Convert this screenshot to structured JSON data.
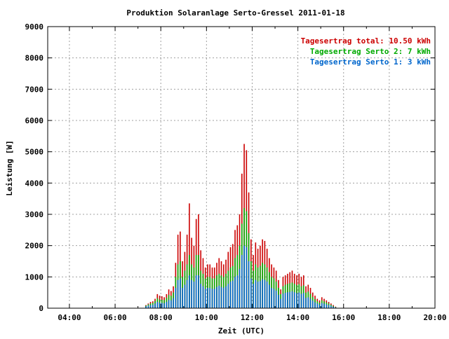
{
  "chart_data": {
    "type": "bar",
    "title": "Produktion Solaranlage Serto-Gressel 2011-01-18",
    "xlabel": "Zeit (UTC)",
    "ylabel": "Leistung [W]",
    "xlim": [
      3.05,
      20.0
    ],
    "ylim": [
      0,
      9000
    ],
    "grid": true,
    "legend_position": "top-right",
    "x_tick_values": [
      4,
      6,
      8,
      10,
      12,
      14,
      16,
      18,
      20
    ],
    "x_tick_labels": [
      "04:00",
      "06:00",
      "08:00",
      "10:00",
      "12:00",
      "14:00",
      "16:00",
      "18:00",
      "20:00"
    ],
    "y_ticks": [
      0,
      1000,
      2000,
      3000,
      4000,
      5000,
      6000,
      7000,
      8000,
      9000
    ],
    "x_unit": "hours UTC",
    "legend": [
      {
        "label": "Tagesertrag total: 10.50 kWh",
        "color": "#cc0000"
      },
      {
        "label": "Tagesertrag Serto 2: 7 kWh",
        "color": "#00aa00"
      },
      {
        "label": "Tagesertrag Serto 1: 3 kWh",
        "color": "#0066cc"
      }
    ],
    "series_colors": {
      "total": "#cc0000",
      "serto2": "#00aa00",
      "serto1": "#0066cc"
    },
    "x": [
      7.35,
      7.45,
      7.55,
      7.65,
      7.75,
      7.85,
      7.95,
      8.05,
      8.15,
      8.25,
      8.35,
      8.45,
      8.55,
      8.65,
      8.75,
      8.85,
      8.95,
      9.05,
      9.15,
      9.25,
      9.35,
      9.45,
      9.55,
      9.65,
      9.75,
      9.85,
      9.95,
      10.05,
      10.15,
      10.25,
      10.35,
      10.45,
      10.55,
      10.65,
      10.75,
      10.85,
      10.95,
      11.05,
      11.15,
      11.25,
      11.35,
      11.45,
      11.55,
      11.65,
      11.75,
      11.85,
      11.95,
      12.05,
      12.15,
      12.25,
      12.35,
      12.45,
      12.55,
      12.65,
      12.75,
      12.85,
      12.95,
      13.05,
      13.15,
      13.25,
      13.35,
      13.45,
      13.55,
      13.65,
      13.75,
      13.85,
      13.95,
      14.05,
      14.15,
      14.25,
      14.35,
      14.45,
      14.55,
      14.65,
      14.75,
      14.85,
      14.95,
      15.05,
      15.15,
      15.25,
      15.35,
      15.45,
      15.55,
      15.65
    ],
    "series": [
      {
        "name": "Tagesertrag total: 10.50 kWh",
        "color": "#cc0000",
        "values": [
          100,
          150,
          200,
          220,
          300,
          450,
          400,
          380,
          350,
          450,
          600,
          550,
          700,
          1450,
          2350,
          2450,
          1500,
          1800,
          2350,
          3350,
          2250,
          2000,
          2850,
          3000,
          1850,
          1600,
          1300,
          1400,
          1400,
          1300,
          1300,
          1450,
          1600,
          1500,
          1400,
          1550,
          1800,
          1950,
          2050,
          2500,
          2650,
          3000,
          4300,
          5250,
          5050,
          3700,
          2200,
          1700,
          2100,
          1900,
          2000,
          2200,
          2150,
          1900,
          1600,
          1400,
          1300,
          1200,
          900,
          600,
          1000,
          1050,
          1100,
          1150,
          1200,
          1100,
          1050,
          1100,
          1000,
          1050,
          700,
          750,
          650,
          500,
          400,
          300,
          250,
          350,
          300,
          250,
          200,
          150,
          100,
          50
        ]
      },
      {
        "name": "Tagesertrag Serto 2: 7 kWh",
        "color": "#00aa00",
        "values": [
          80,
          120,
          150,
          170,
          230,
          320,
          280,
          270,
          260,
          330,
          420,
          400,
          500,
          1000,
          1400,
          1500,
          1000,
          1200,
          1400,
          1700,
          1400,
          1300,
          1700,
          1700,
          1200,
          1100,
          950,
          1000,
          1000,
          950,
          950,
          1050,
          1100,
          1050,
          1000,
          1100,
          1200,
          1300,
          1350,
          1600,
          1700,
          2000,
          2700,
          3200,
          3100,
          2400,
          1500,
          1200,
          1400,
          1300,
          1350,
          1450,
          1400,
          1300,
          1150,
          1000,
          950,
          850,
          650,
          450,
          700,
          750,
          780,
          800,
          820,
          780,
          740,
          770,
          700,
          730,
          500,
          530,
          460,
          360,
          290,
          220,
          180,
          250,
          220,
          180,
          150,
          110,
          70,
          35
        ]
      },
      {
        "name": "Tagesertrag Serto 1: 3 kWh",
        "color": "#0066cc",
        "values": [
          60,
          80,
          100,
          110,
          150,
          200,
          180,
          170,
          160,
          200,
          260,
          250,
          320,
          650,
          900,
          950,
          650,
          750,
          900,
          1050,
          900,
          850,
          1050,
          1050,
          780,
          700,
          620,
          650,
          650,
          620,
          620,
          680,
          720,
          680,
          650,
          700,
          780,
          850,
          880,
          1000,
          1050,
          1250,
          1700,
          2000,
          1950,
          1500,
          950,
          780,
          900,
          850,
          870,
          930,
          900,
          850,
          750,
          650,
          620,
          560,
          430,
          300,
          460,
          490,
          510,
          520,
          540,
          510,
          480,
          500,
          460,
          480,
          330,
          350,
          300,
          240,
          190,
          150,
          120,
          165,
          145,
          120,
          100,
          75,
          48,
          25
        ]
      }
    ]
  }
}
